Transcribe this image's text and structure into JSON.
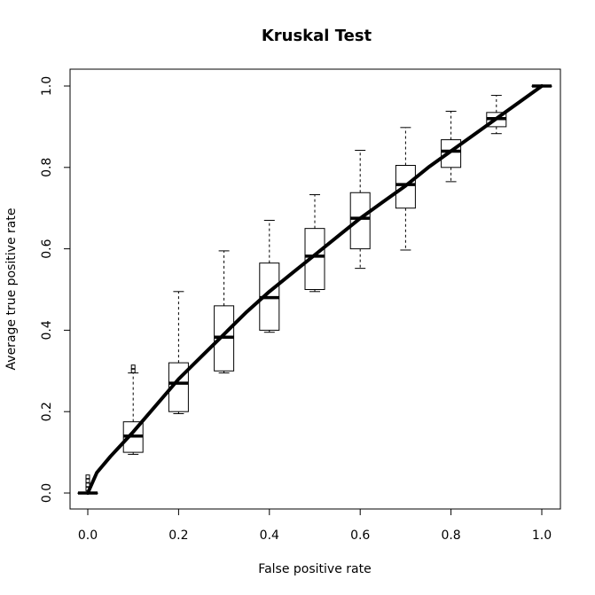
{
  "chart_data": {
    "type": "box",
    "title": "Kruskal Test",
    "xlabel": "False positive rate",
    "ylabel": "Average true positive rate",
    "xlim": [
      0,
      1
    ],
    "ylim": [
      0,
      1
    ],
    "x_ticks": [
      "0.0",
      "0.2",
      "0.4",
      "0.6",
      "0.8",
      "1.0"
    ],
    "y_ticks": [
      "0.0",
      "0.2",
      "0.4",
      "0.6",
      "0.8",
      "1.0"
    ],
    "grid": false,
    "boxes": [
      {
        "x": 0.0,
        "whisker_low": 0.0,
        "q1": 0.0,
        "median": 0.0,
        "q3": 0.0,
        "whisker_high": 0.0,
        "outliers": [
          0.01,
          0.02,
          0.03,
          0.04
        ]
      },
      {
        "x": 0.1,
        "whisker_low": 0.095,
        "q1": 0.1,
        "median": 0.14,
        "q3": 0.175,
        "whisker_high": 0.295,
        "outliers": [
          0.3,
          0.31
        ]
      },
      {
        "x": 0.2,
        "whisker_low": 0.195,
        "q1": 0.2,
        "median": 0.27,
        "q3": 0.32,
        "whisker_high": 0.495,
        "outliers": []
      },
      {
        "x": 0.3,
        "whisker_low": 0.295,
        "q1": 0.3,
        "median": 0.383,
        "q3": 0.46,
        "whisker_high": 0.595,
        "outliers": []
      },
      {
        "x": 0.4,
        "whisker_low": 0.395,
        "q1": 0.4,
        "median": 0.48,
        "q3": 0.565,
        "whisker_high": 0.67,
        "outliers": []
      },
      {
        "x": 0.5,
        "whisker_low": 0.495,
        "q1": 0.5,
        "median": 0.582,
        "q3": 0.65,
        "whisker_high": 0.733,
        "outliers": []
      },
      {
        "x": 0.6,
        "whisker_low": 0.552,
        "q1": 0.6,
        "median": 0.675,
        "q3": 0.738,
        "whisker_high": 0.842,
        "outliers": []
      },
      {
        "x": 0.7,
        "whisker_low": 0.597,
        "q1": 0.7,
        "median": 0.758,
        "q3": 0.805,
        "whisker_high": 0.898,
        "outliers": []
      },
      {
        "x": 0.8,
        "whisker_low": 0.765,
        "q1": 0.8,
        "median": 0.84,
        "q3": 0.868,
        "whisker_high": 0.938,
        "outliers": []
      },
      {
        "x": 0.9,
        "whisker_low": 0.883,
        "q1": 0.9,
        "median": 0.92,
        "q3": 0.935,
        "whisker_high": 0.977,
        "outliers": []
      },
      {
        "x": 1.0,
        "whisker_low": 1.0,
        "q1": 1.0,
        "median": 1.0,
        "q3": 1.0,
        "whisker_high": 1.0,
        "outliers": []
      }
    ],
    "mean_curve": {
      "x": [
        0.0,
        0.02,
        0.05,
        0.1,
        0.15,
        0.2,
        0.25,
        0.3,
        0.35,
        0.4,
        0.45,
        0.5,
        0.55,
        0.6,
        0.65,
        0.7,
        0.75,
        0.8,
        0.85,
        0.9,
        0.95,
        1.0
      ],
      "y": [
        0.0,
        0.05,
        0.09,
        0.15,
        0.215,
        0.28,
        0.335,
        0.39,
        0.445,
        0.495,
        0.54,
        0.585,
        0.63,
        0.675,
        0.715,
        0.755,
        0.8,
        0.84,
        0.88,
        0.92,
        0.96,
        1.0
      ]
    },
    "colors": {
      "line": "#000000",
      "box": "#000000",
      "background": "#ffffff"
    }
  }
}
